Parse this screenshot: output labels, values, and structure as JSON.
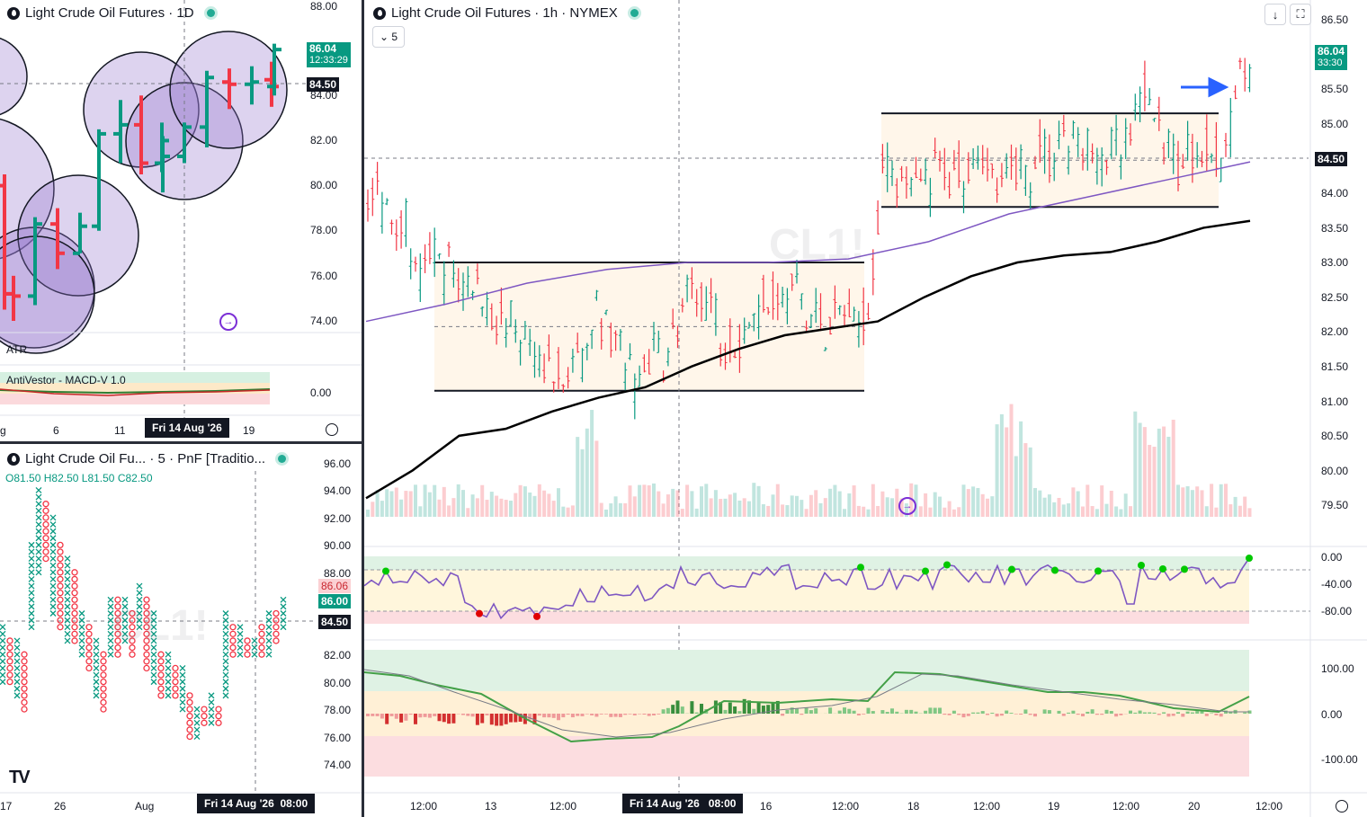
{
  "top_left": {
    "title": "Light Crude Oil Futures · 1D",
    "y_ticks": [
      "88.00",
      "84.00",
      "82.00",
      "80.00",
      "78.00",
      "76.00",
      "74.00"
    ],
    "last_price": "86.04",
    "countdown": "12:33:29",
    "crosshair_price": "84.50",
    "atr_label": "ATR",
    "macd_label": "AntiVestor - MACD-V 1.0",
    "macd_tick": "0.00",
    "x_ticks": [
      "g",
      "6",
      "11",
      "19"
    ],
    "crosshair_date": "Fri 14 Aug '26"
  },
  "bottom_left": {
    "title": "Light Crude Oil Fu... · 5 · PnF [Traditio...",
    "ohlc": {
      "o": "81.50",
      "h": "82.50",
      "l": "81.50",
      "c": "82.50"
    },
    "y_ticks": [
      "96.00",
      "94.00",
      "92.00",
      "90.00",
      "88.00",
      "82.00",
      "80.00",
      "78.00",
      "76.00",
      "74.00"
    ],
    "badge_red": "86.06",
    "badge_green": "86.00",
    "crosshair_price": "84.50",
    "x_ticks": [
      "17",
      "26",
      "Aug"
    ],
    "crosshair_date": "Fri 14 Aug '26",
    "crosshair_time": "08:00"
  },
  "main": {
    "title": "Light Crude Oil Futures · 1h · NYMEX",
    "interval_button": "5",
    "y_ticks": [
      "86.50",
      "85.50",
      "85.00",
      "84.00",
      "83.50",
      "83.00",
      "82.50",
      "82.00",
      "81.50",
      "81.00",
      "80.50",
      "80.00",
      "79.50"
    ],
    "last_price": "86.04",
    "countdown": "33:30",
    "crosshair_price": "84.50",
    "osc_ticks": [
      "0.00",
      "-40.00",
      "-80.00"
    ],
    "macd_ticks": [
      "100.00",
      "0.00",
      "-100.00"
    ],
    "x_ticks": [
      "12:00",
      "13",
      "12:00",
      "16",
      "12:00",
      "18",
      "12:00",
      "19",
      "12:00",
      "20",
      "12:00"
    ],
    "crosshair_date": "Fri 14 Aug '26",
    "crosshair_time": "08:00"
  },
  "chart_data": [
    {
      "type": "ohlc",
      "title": "Light Crude Oil Futures · 1D",
      "ylim": [
        73,
        88
      ],
      "bars": [
        {
          "o": 80,
          "h": 80.5,
          "l": 74.5,
          "c": 75.2
        },
        {
          "o": 75.2,
          "h": 76,
          "l": 74,
          "c": 75.1
        },
        {
          "o": 75.1,
          "h": 78.6,
          "l": 74.7,
          "c": 78.3
        },
        {
          "o": 78.3,
          "h": 79,
          "l": 76.3,
          "c": 77
        },
        {
          "o": 77,
          "h": 78.8,
          "l": 77,
          "c": 78.2
        },
        {
          "o": 78.2,
          "h": 82.5,
          "l": 78,
          "c": 82.3
        },
        {
          "o": 82.3,
          "h": 83.8,
          "l": 81,
          "c": 82.7
        },
        {
          "o": 82.7,
          "h": 84,
          "l": 80.5,
          "c": 81
        },
        {
          "o": 81,
          "h": 82.8,
          "l": 80.6,
          "c": 82
        },
        {
          "o": 81,
          "h": 82.2,
          "l": 79.7,
          "c": 81.3
        },
        {
          "o": 81.3,
          "h": 82.8,
          "l": 81,
          "c": 82.6
        },
        {
          "o": 82.6,
          "h": 85.1,
          "l": 81.7,
          "c": 84.8
        },
        {
          "o": 84.6,
          "h": 85.2,
          "l": 83.4,
          "c": 84.5
        },
        {
          "o": 84.5,
          "h": 85.3,
          "l": 83.6,
          "c": 84.6
        },
        {
          "o": 84.7,
          "h": 85.5,
          "l": 83.5,
          "c": 84.4
        },
        {
          "o": 84.4,
          "h": 86.3,
          "l": 84,
          "c": 86.04
        }
      ]
    },
    {
      "type": "ohlc",
      "title": "Light Crude Oil Futures · 1h · NYMEX",
      "ylim": [
        79.3,
        86.8
      ],
      "range_boxes": [
        {
          "top": 83.0,
          "bottom": 81.15
        },
        {
          "top": 85.15,
          "bottom": 83.8
        }
      ],
      "series": [
        {
          "name": "MA (purple)",
          "values": [
            82.15,
            82.4,
            82.7,
            82.9,
            83.0,
            83.0,
            83.05,
            83.3,
            83.7,
            83.95,
            84.2,
            84.45
          ]
        },
        {
          "name": "MA (black)",
          "values": [
            79.6,
            80.0,
            80.5,
            80.6,
            80.85,
            81.05,
            81.2,
            81.5,
            81.75,
            81.95,
            82.05,
            82.15,
            82.5,
            82.8,
            83.0,
            83.1,
            83.15,
            83.3,
            83.5,
            83.6
          ]
        }
      ]
    }
  ]
}
